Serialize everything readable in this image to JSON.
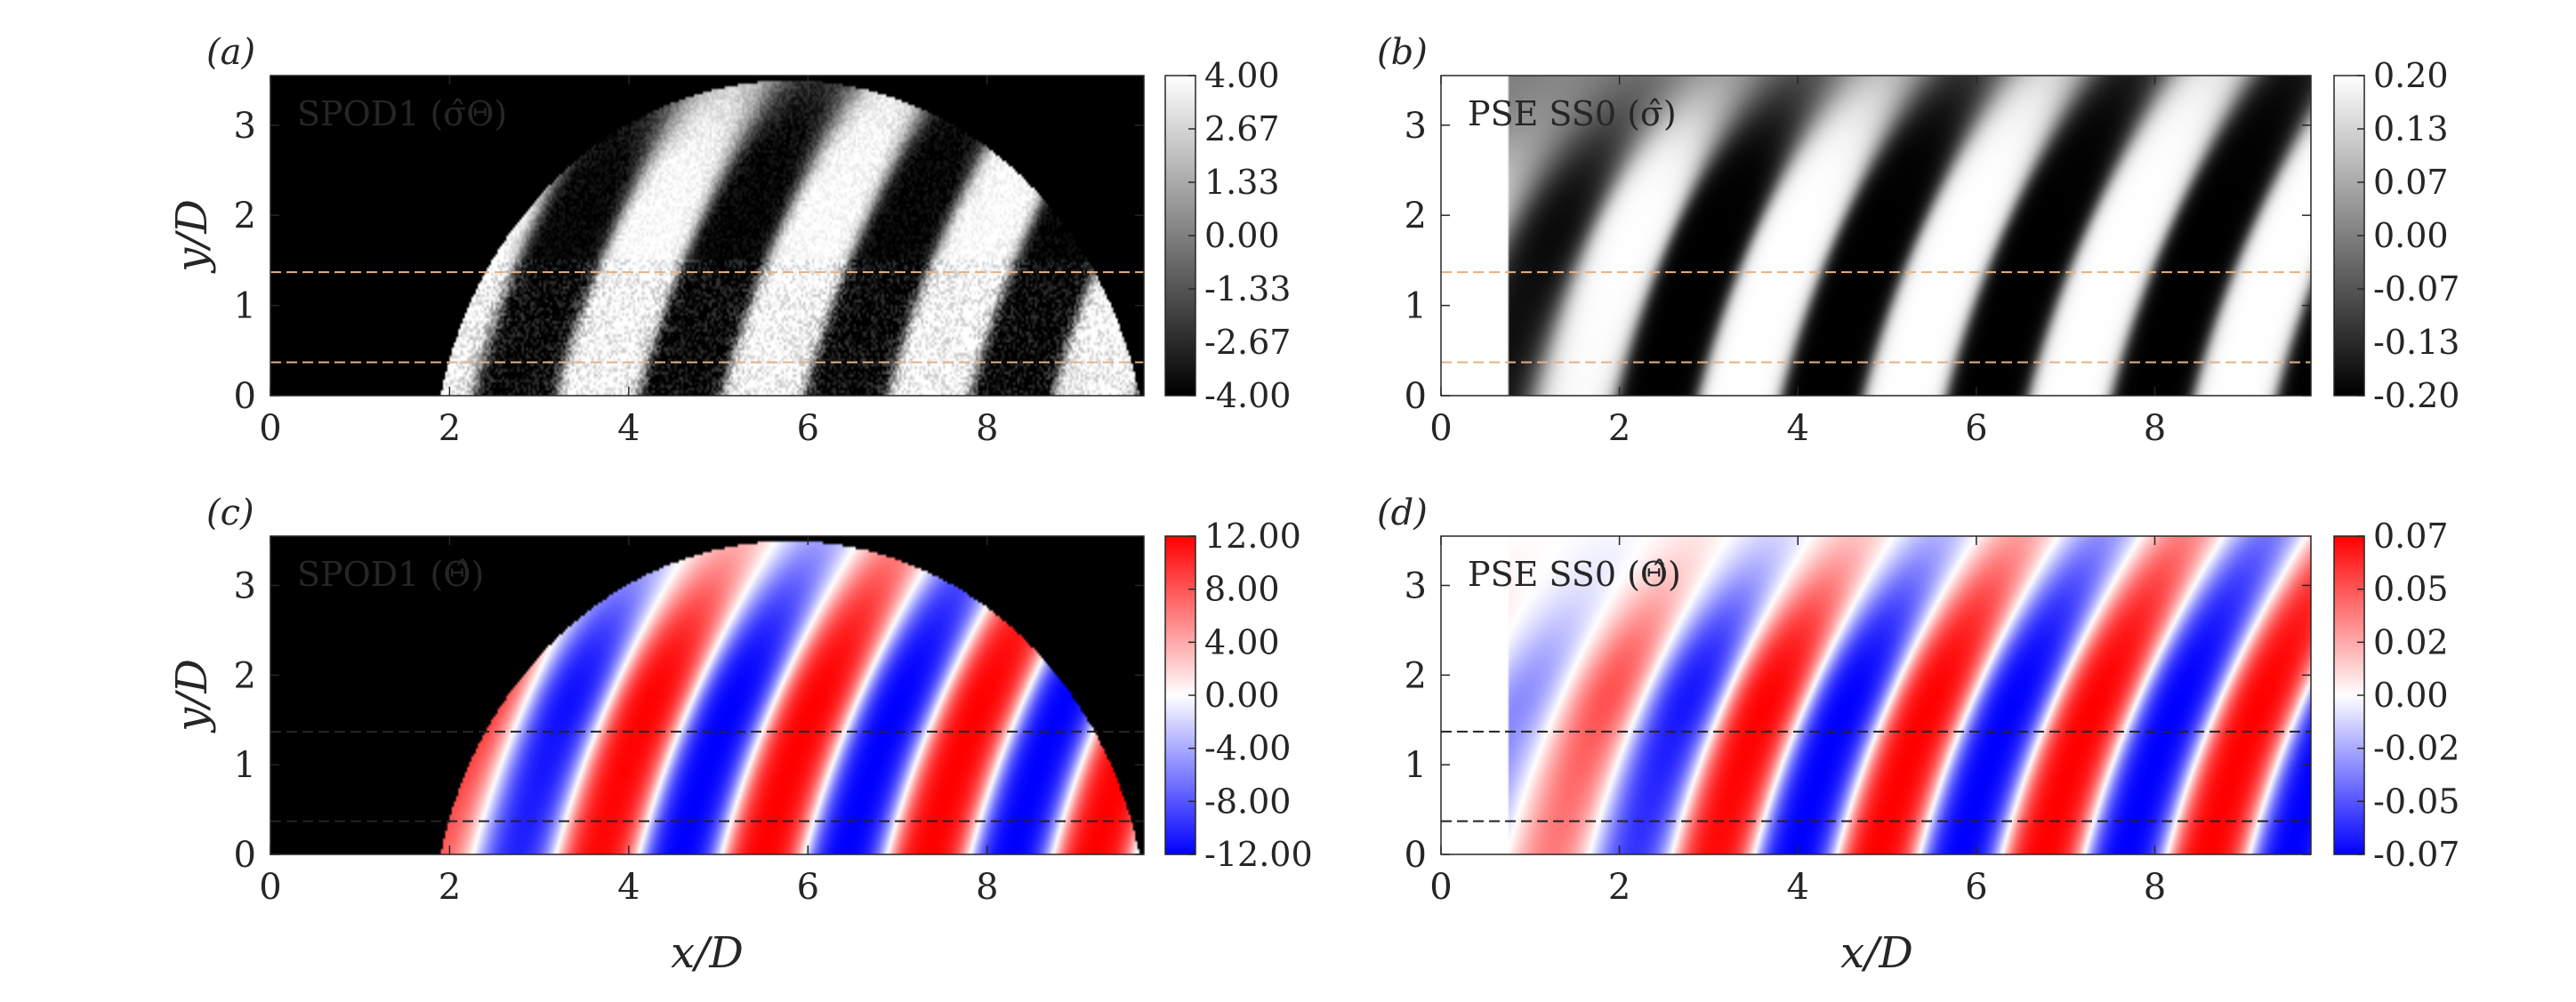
{
  "chart_data": [
    {
      "type": "heatmap",
      "panel_label": "(a)",
      "title": "SPOD1 (σ̂Θ)",
      "xlabel": "",
      "ylabel": "y/D",
      "xlim": [
        0,
        9.75
      ],
      "ylim": [
        0,
        3.55
      ],
      "xticks": [
        "0",
        "2",
        "4",
        "6",
        "8"
      ],
      "yticks": [
        "0",
        "1",
        "2",
        "3"
      ],
      "colormap": "gray",
      "colorbar_ticks": [
        "4.00",
        "2.67",
        "1.33",
        "0.00",
        "-1.33",
        "-2.67",
        "-4.00"
      ],
      "colorbar_range": [
        -4.0,
        4.0
      ],
      "field": {
        "data_start_x": 0,
        "wavelength": 1.85,
        "first_peak_x": 5.5,
        "amp_near_nozzle": 0.3,
        "amp_growth_end_x": 4.0,
        "noisy": true,
        "masked_upper_right": true
      },
      "reference_lines_y": [
        0.37,
        1.37
      ],
      "reference_line_color": "#e6b17e"
    },
    {
      "type": "heatmap",
      "panel_label": "(b)",
      "title": "PSE SS0 (σ̂)",
      "xlabel": "",
      "ylabel": "",
      "xlim": [
        0,
        9.75
      ],
      "ylim": [
        0,
        3.55
      ],
      "xticks": [
        "0",
        "2",
        "4",
        "6",
        "8"
      ],
      "yticks": [
        "0",
        "1",
        "2",
        "3"
      ],
      "colormap": "gray",
      "colorbar_ticks": [
        "0.20",
        "0.13",
        "0.07",
        "0.00",
        "-0.07",
        "-0.13",
        "-0.20"
      ],
      "colorbar_range": [
        -0.2,
        0.2
      ],
      "field": {
        "data_start_x": 0.75,
        "wavelength": 1.85,
        "first_peak_x": 5.2,
        "amp_near_nozzle": 0.4,
        "amp_growth_end_x": 2.8,
        "noisy": false,
        "masked_upper_right": false
      },
      "reference_lines_y": [
        0.37,
        1.37
      ],
      "reference_line_color": "#e6b17e"
    },
    {
      "type": "heatmap",
      "panel_label": "(c)",
      "title": "SPOD1 (Θ̂)",
      "xlabel": "x/D",
      "ylabel": "y/D",
      "xlim": [
        0,
        9.75
      ],
      "ylim": [
        0,
        3.55
      ],
      "xticks": [
        "0",
        "2",
        "4",
        "6",
        "8"
      ],
      "yticks": [
        "0",
        "1",
        "2",
        "3"
      ],
      "colormap": "blue-white-red",
      "colorbar_ticks": [
        "12.00",
        "8.00",
        "4.00",
        "0.00",
        "-4.00",
        "-8.00",
        "-12.00"
      ],
      "colorbar_range": [
        -12.0,
        12.0
      ],
      "field": {
        "data_start_x": 0,
        "wavelength": 1.85,
        "first_peak_x": 5.5,
        "amp_near_nozzle": 0.15,
        "amp_growth_end_x": 4.5,
        "noisy": false,
        "masked_upper_right": true
      },
      "reference_lines_y": [
        0.37,
        1.37
      ],
      "reference_line_color": "#222222"
    },
    {
      "type": "heatmap",
      "panel_label": "(d)",
      "title": "PSE SS0 (Θ̂)",
      "xlabel": "x/D",
      "ylabel": "",
      "xlim": [
        0,
        9.75
      ],
      "ylim": [
        0,
        3.55
      ],
      "xticks": [
        "0",
        "2",
        "4",
        "6",
        "8"
      ],
      "yticks": [
        "0",
        "1",
        "2",
        "3"
      ],
      "colormap": "blue-white-red",
      "colorbar_ticks": [
        "0.07",
        "0.05",
        "0.02",
        "0.00",
        "-0.02",
        "-0.05",
        "-0.07"
      ],
      "colorbar_range": [
        -0.07,
        0.07
      ],
      "field": {
        "data_start_x": 0.75,
        "wavelength": 1.85,
        "first_peak_x": 4.9,
        "amp_near_nozzle": 0.3,
        "amp_growth_end_x": 3.8,
        "noisy": false,
        "masked_upper_right": false
      },
      "reference_lines_y": [
        0.37,
        1.37
      ],
      "reference_line_color": "#222222"
    }
  ]
}
